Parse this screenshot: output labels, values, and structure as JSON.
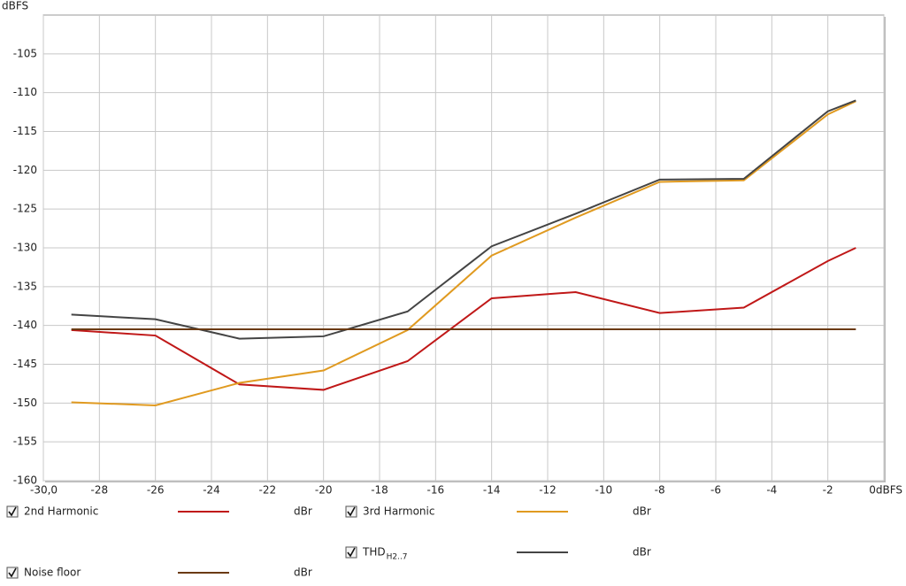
{
  "chart_data": {
    "type": "line",
    "y_axis_label": "dBFS",
    "x": [
      -29,
      -26,
      -23,
      -20,
      -17,
      -14,
      -11,
      -8,
      -5,
      -2,
      -1
    ],
    "series": [
      {
        "name": "2nd Harmonic",
        "unit": "dBr",
        "color": "#c01818",
        "values": [
          -140.6,
          -141.3,
          -147.6,
          -148.3,
          -144.6,
          -136.5,
          -135.7,
          -138.4,
          -137.7,
          -131.7,
          -130.0
        ]
      },
      {
        "name": "3rd Harmonic",
        "unit": "dBr",
        "color": "#e09a20",
        "values": [
          -149.9,
          -150.3,
          -147.4,
          -145.8,
          -140.6,
          -131.0,
          -126.1,
          -121.5,
          -121.3,
          -112.8,
          -111.1
        ]
      },
      {
        "name": "THD",
        "name_sub": "H2..7",
        "unit": "dBr",
        "color": "#444444",
        "values": [
          -138.6,
          -139.2,
          -141.7,
          -141.4,
          -138.2,
          -129.8,
          -125.6,
          -121.2,
          -121.1,
          -112.4,
          -111.0
        ]
      },
      {
        "name": "Noise floor",
        "unit": "dBr",
        "color": "#6b3a12",
        "values": [
          -140.5,
          -140.5,
          -140.5,
          -140.5,
          -140.5,
          -140.5,
          -140.5,
          -140.5,
          -140.5,
          -140.5,
          -140.5
        ]
      }
    ],
    "xlim": [
      -30,
      0
    ],
    "xticks": [
      {
        "value": -30,
        "label": "-30,0"
      },
      -28,
      -26,
      -24,
      -22,
      -20,
      -18,
      -16,
      -14,
      -12,
      -10,
      -8,
      -6,
      -4,
      -2,
      {
        "value": 0,
        "label": "0dBFS"
      }
    ],
    "ylim": [
      -100,
      -160
    ],
    "yticks": [
      -105,
      -110,
      -115,
      -120,
      -125,
      -130,
      -135,
      -140,
      -145,
      -150,
      -155,
      -160
    ],
    "grid": true
  }
}
